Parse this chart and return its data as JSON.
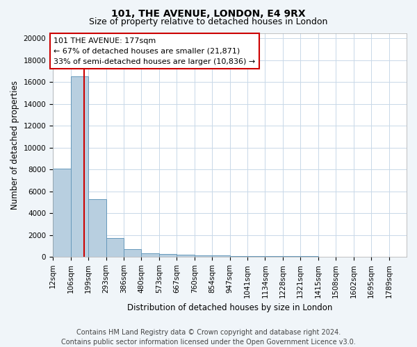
{
  "title": "101, THE AVENUE, LONDON, E4 9RX",
  "subtitle": "Size of property relative to detached houses in London",
  "xlabel": "Distribution of detached houses by size in London",
  "ylabel": "Number of detached properties",
  "bin_edges": [
    12,
    106,
    199,
    293,
    386,
    480,
    573,
    667,
    760,
    854,
    947,
    1041,
    1134,
    1228,
    1321,
    1415,
    1508,
    1602,
    1695,
    1789,
    1882
  ],
  "bin_heights": [
    8050,
    16500,
    5300,
    1750,
    700,
    350,
    270,
    190,
    170,
    120,
    90,
    70,
    55,
    50,
    45,
    38,
    32,
    28,
    22,
    18
  ],
  "bar_color": "#b8cfe0",
  "bar_edge_color": "#6699bb",
  "property_size": 177,
  "property_line_color": "#cc0000",
  "annotation_text": "101 THE AVENUE: 177sqm\n← 67% of detached houses are smaller (21,871)\n33% of semi-detached houses are larger (10,836) →",
  "annotation_box_color": "#ffffff",
  "annotation_box_edge_color": "#cc0000",
  "ylim": [
    0,
    20500
  ],
  "yticks": [
    0,
    2000,
    4000,
    6000,
    8000,
    10000,
    12000,
    14000,
    16000,
    18000,
    20000
  ],
  "footer_line1": "Contains HM Land Registry data © Crown copyright and database right 2024.",
  "footer_line2": "Contains public sector information licensed under the Open Government Licence v3.0.",
  "background_color": "#f0f5f9",
  "plot_background_color": "#ffffff",
  "grid_color": "#c8d8e8",
  "title_fontsize": 10,
  "subtitle_fontsize": 9,
  "axis_label_fontsize": 8.5,
  "tick_fontsize": 7.5,
  "annotation_fontsize": 8,
  "footer_fontsize": 7
}
